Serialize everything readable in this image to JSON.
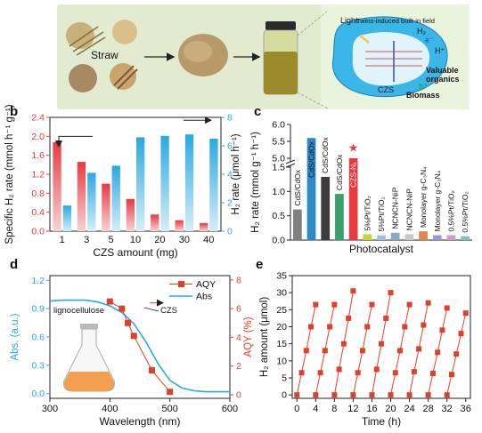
{
  "panel_a": {
    "letter": "a",
    "straw_label": "Straw",
    "light_label": "Light",
    "field_label": "Twins-induced built-in field",
    "h2_label": "H₂",
    "e_label": "e⁻",
    "hplus_label": "H⁺",
    "hplus_hole_label": "h⁺",
    "valuable_label": "Valuable",
    "organics_label": "organics",
    "czs_label": "CZS",
    "biomass_label": "Biomass",
    "colors": {
      "bg_left": "#dfe8c9",
      "bg_right": "#e6f2d8",
      "droplet": "#35b8e6",
      "powder": "#b89a6a",
      "straw": "#c9a56c"
    }
  },
  "panel_b": {
    "letter": "b"
  },
  "panel_c": {
    "letter": "c"
  },
  "panel_d": {
    "letter": "d",
    "left_inset_label": "lignocellulose",
    "czs_curve_label": "CZS"
  },
  "panel_e": {
    "letter": "e"
  },
  "chart_data": [
    {
      "id": "b",
      "type": "bar",
      "xlabel": "CZS amount (mg)",
      "ylabel_left": "Specific H₂ rate (mmol h⁻¹ g⁻¹)",
      "ylabel_right": "H₂ rate (μmol h⁻¹)",
      "categories": [
        "1",
        "3",
        "5",
        "10",
        "20",
        "30",
        "40"
      ],
      "ylim_left": [
        0,
        2.4
      ],
      "ylim_right": [
        0,
        8
      ],
      "yticks_left": [
        "0.0",
        "0.4",
        "0.8",
        "1.2",
        "1.6",
        "2.0",
        "2.4"
      ],
      "yticks_right": [
        "0",
        "2",
        "4",
        "6",
        "8"
      ],
      "series": [
        {
          "axis": "left",
          "color": "#e8393f",
          "values": [
            1.88,
            1.46,
            1.0,
            0.68,
            0.35,
            0.23,
            0.17
          ]
        },
        {
          "axis": "right",
          "color": "#29a9e0",
          "values": [
            1.8,
            4.1,
            4.6,
            6.6,
            6.7,
            6.8,
            6.5
          ]
        }
      ],
      "colors": {
        "left_axis": "#e8393f",
        "right_axis": "#29a9e0"
      }
    },
    {
      "id": "c",
      "type": "bar",
      "xlabel": "Photocatalyst",
      "ylabel": "H₂ rate (mmol g⁻¹ h⁻¹)",
      "yticks": [
        "0.0",
        "0.5",
        "1.0",
        "1.5",
        "5.0",
        "5.5",
        "6.0"
      ],
      "categories": [
        "CdS/CdOx",
        "CdS/CdOx",
        "CdS/CdOx",
        "CdS/CdOx",
        "CZS-N",
        "5%Pt/TiO₂",
        "5%Pt/TiO₂",
        "NCNCN-NiP",
        "NCNCN-NiP",
        "Monolayer g-C₃N₄",
        "Monolayer g-C₃N₄",
        "0.5%Pt/TiO₂",
        "0.5%Pt/TiO₂"
      ],
      "bar_labels": [
        "CdS/CdOx",
        "CdS/CdOx",
        "CdS/CdOx",
        "CdS/CdOx",
        "CZS-N₁",
        "5%Pt/TiO₂",
        "5%Pt/TiO₂",
        "NCNCN-NiP",
        "NCNCN-NiP",
        "Monolayer g-C₃N₄",
        "Monolayer g-C₃N₄",
        "0.5%Pt/TiO₂",
        "0.5%Pt/TiO₂"
      ],
      "values": [
        0.63,
        5.6,
        1.3,
        0.95,
        5.0,
        0.12,
        0.1,
        0.15,
        0.12,
        0.18,
        0.1,
        0.1,
        0.08
      ],
      "colors": [
        "#808080",
        "#2e8ac8",
        "#3c3c3c",
        "#3aa06a",
        "#e8393f",
        "#c4d43a",
        "#a0c0e0",
        "#8aa8c8",
        "#c8c8c8",
        "#e08850",
        "#9a9aca",
        "#c8a0c8",
        "#80c0c0"
      ],
      "highlight_index": 4
    },
    {
      "id": "d",
      "type": "line",
      "xlabel": "Wavelength (nm)",
      "ylabel_left": "Abs. (a.u.)",
      "ylabel_right": "AQY (%)",
      "xlim": [
        300,
        600
      ],
      "xticks": [
        "300",
        "400",
        "500",
        "600"
      ],
      "ylim_left": [
        -0.05,
        1.25
      ],
      "yticks_left": [
        "0.0",
        "0.3",
        "0.6",
        "0.9",
        "1.2"
      ],
      "ylim_right": [
        -0.25,
        8.3
      ],
      "yticks_right": [
        "0",
        "2",
        "4",
        "6",
        "8"
      ],
      "legend": [
        "AQY",
        "Abs"
      ],
      "series": [
        {
          "name": "AQY",
          "axis": "right",
          "color": "#e0402a",
          "x": [
            400,
            420,
            430,
            440,
            470,
            500
          ],
          "y": [
            6.5,
            6.0,
            5.0,
            4.1,
            1.7,
            0.2
          ]
        },
        {
          "name": "Abs",
          "axis": "left",
          "color": "#29a9e0",
          "x": [
            300,
            320,
            340,
            360,
            380,
            400,
            420,
            440,
            460,
            480,
            500,
            520,
            540,
            560,
            580,
            600
          ],
          "y": [
            0.98,
            0.99,
            0.99,
            0.99,
            0.97,
            0.93,
            0.86,
            0.74,
            0.55,
            0.32,
            0.14,
            0.06,
            0.03,
            0.02,
            0.02,
            0.02
          ]
        }
      ]
    },
    {
      "id": "e",
      "type": "line",
      "xlabel": "Time (h)",
      "ylabel": "H₂ amount (μmol)",
      "xlim": [
        -1,
        37
      ],
      "xticks": [
        "0",
        "4",
        "8",
        "12",
        "16",
        "20",
        "24",
        "28",
        "32",
        "36"
      ],
      "ylim": [
        -1,
        35
      ],
      "yticks": [
        "0",
        "5",
        "10",
        "15",
        "20",
        "25",
        "30",
        "35"
      ],
      "color": "#e0402a",
      "cycles": [
        {
          "x": [
            0,
            1,
            2,
            3,
            4
          ],
          "y": [
            0,
            6.5,
            13,
            20,
            26.5
          ]
        },
        {
          "x": [
            4,
            5,
            6,
            7,
            8
          ],
          "y": [
            0,
            6.5,
            13,
            20,
            26.5
          ]
        },
        {
          "x": [
            8,
            9,
            10,
            11,
            12
          ],
          "y": [
            0,
            7.5,
            15,
            22.5,
            30.5
          ]
        },
        {
          "x": [
            12,
            13,
            14,
            15,
            16
          ],
          "y": [
            0,
            6.5,
            13,
            20,
            26.5
          ]
        },
        {
          "x": [
            16,
            17,
            18,
            19,
            20
          ],
          "y": [
            0,
            7.5,
            15,
            22.5,
            30
          ]
        },
        {
          "x": [
            20,
            21,
            22,
            23,
            24
          ],
          "y": [
            0,
            6.5,
            13,
            20,
            26.5
          ]
        },
        {
          "x": [
            24,
            25,
            26,
            27,
            28
          ],
          "y": [
            0,
            6.8,
            13.5,
            20.5,
            27
          ]
        },
        {
          "x": [
            28,
            29,
            30,
            31,
            32
          ],
          "y": [
            0,
            6.3,
            12.5,
            19,
            25.5
          ]
        },
        {
          "x": [
            32,
            33,
            34,
            35,
            36
          ],
          "y": [
            0,
            6,
            12,
            18,
            24
          ]
        }
      ]
    }
  ]
}
